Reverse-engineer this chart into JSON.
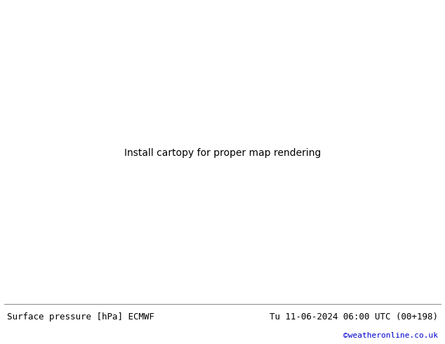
{
  "title_left": "Surface pressure [hPa] ECMWF",
  "title_right": "Tu 11-06-2024 06:00 UTC (00+198)",
  "watermark": "©weatheronline.co.uk",
  "watermark_color": "#0000cc",
  "bg_color": "#ffffff",
  "map_frame_color": "#c8c8c8",
  "ocean_color": "#ffffff",
  "land_color": "#b4d49c",
  "text_color": "#000000",
  "footer_fontsize": 9,
  "line_color_black": "#000000",
  "line_color_blue": "#0000ff",
  "line_color_red": "#ff0000",
  "label_fontsize_black": 6,
  "label_fontsize_blue": 5,
  "label_fontsize_red": 5,
  "contour_linewidth_black": 1.2,
  "contour_linewidth_blue": 0.7,
  "contour_linewidth_red": 0.7
}
